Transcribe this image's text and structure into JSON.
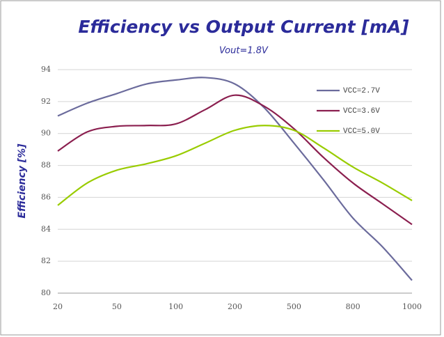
{
  "chart_data": {
    "type": "line",
    "title": "Efficiency vs Output Current [mA]",
    "subtitle": "Vout=1.8V",
    "y_label": "Efficiency [%]",
    "categories": [
      "20",
      null,
      "50",
      null,
      "100",
      null,
      "200",
      null,
      "500",
      null,
      "800",
      null,
      "1000"
    ],
    "series": [
      {
        "name": "VCC=2.7V",
        "color": "#6b6b9c",
        "values": [
          91.1,
          91.9,
          92.5,
          93.1,
          93.35,
          93.5,
          93.1,
          91.6,
          89.4,
          87.1,
          84.7,
          82.9,
          80.8
        ]
      },
      {
        "name": "VCC=3.6V",
        "color": "#8b1f4f",
        "values": [
          88.9,
          90.1,
          90.45,
          90.5,
          90.6,
          91.5,
          92.4,
          91.7,
          90.3,
          88.5,
          86.9,
          85.6,
          84.3
        ]
      },
      {
        "name": "VCC=5.0V",
        "color": "#99cc00",
        "values": [
          85.5,
          86.9,
          87.7,
          88.1,
          88.6,
          89.4,
          90.2,
          90.5,
          90.2,
          89.1,
          87.9,
          86.9,
          85.8
        ]
      }
    ],
    "ylim": [
      80,
      94
    ],
    "yticks": [
      80,
      82,
      84,
      86,
      88,
      90,
      92,
      94
    ],
    "grid": true,
    "legend": "upper right"
  }
}
